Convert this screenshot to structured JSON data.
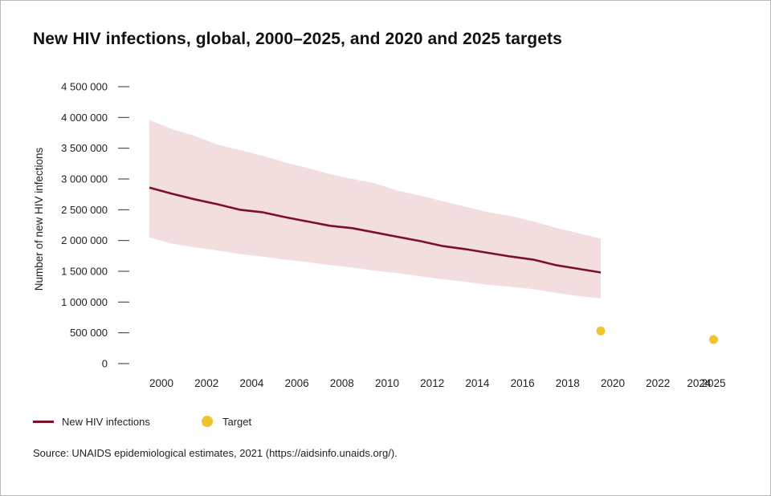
{
  "title": "New HIV infections, global, 2000–2025, and 2020 and 2025 targets",
  "source": "Source: UNAIDS epidemiological estimates, 2021 (https://aidsinfo.unaids.org/).",
  "colors": {
    "line": "#7d1026",
    "band": "#f2dede",
    "target": "#f0c430"
  },
  "legend": {
    "items": [
      {
        "label": "New HIV infections",
        "marker": "line"
      },
      {
        "label": "Target",
        "marker": "dot"
      }
    ]
  },
  "chart_data": {
    "type": "line",
    "title": "New HIV infections, global, 2000–2025, and 2020 and 2025 targets",
    "xlabel": "",
    "ylabel": "Number of new HIV infections",
    "xlim": [
      1999.5,
      2025.5
    ],
    "ylim": [
      0,
      4500000
    ],
    "y_ticks": [
      0,
      500000,
      1000000,
      1500000,
      2000000,
      2500000,
      3000000,
      3500000,
      4000000,
      4500000
    ],
    "y_tick_labels": [
      "0",
      "500 000",
      "1 000 000",
      "1 500 000",
      "2 000 000",
      "2 500 000",
      "3 000 000",
      "3 500 000",
      "4 000 000",
      "4 500 000"
    ],
    "x_ticks": [
      2000,
      2002,
      2004,
      2006,
      2008,
      2010,
      2012,
      2014,
      2016,
      2018,
      2020,
      2022,
      2024,
      2025
    ],
    "x_tick_labels": [
      "2000",
      "2002",
      "2004",
      "2006",
      "2008",
      "2010",
      "2012",
      "2014",
      "2016",
      "2018",
      "2020",
      "2022",
      "2024",
      "2025"
    ],
    "grid": false,
    "legend_position": "bottom-left",
    "x": [
      2000,
      2001,
      2002,
      2003,
      2004,
      2005,
      2006,
      2007,
      2008,
      2009,
      2010,
      2011,
      2012,
      2013,
      2014,
      2015,
      2016,
      2017,
      2018,
      2019,
      2020
    ],
    "series": [
      {
        "name": "New HIV infections",
        "values": [
          2860000,
          2760000,
          2670000,
          2590000,
          2500000,
          2460000,
          2380000,
          2310000,
          2240000,
          2200000,
          2130000,
          2060000,
          1990000,
          1910000,
          1860000,
          1800000,
          1740000,
          1690000,
          1600000,
          1540000,
          1480000
        ],
        "lower": [
          2050000,
          1950000,
          1890000,
          1840000,
          1780000,
          1740000,
          1690000,
          1650000,
          1600000,
          1560000,
          1510000,
          1470000,
          1420000,
          1370000,
          1330000,
          1280000,
          1250000,
          1210000,
          1150000,
          1100000,
          1060000
        ],
        "upper": [
          3960000,
          3810000,
          3700000,
          3560000,
          3470000,
          3380000,
          3270000,
          3180000,
          3080000,
          3000000,
          2930000,
          2810000,
          2730000,
          2640000,
          2550000,
          2460000,
          2400000,
          2310000,
          2210000,
          2120000,
          2030000
        ]
      },
      {
        "name": "Target",
        "type": "scatter",
        "x": [
          2020,
          2025
        ],
        "values": [
          530000,
          390000
        ]
      }
    ]
  }
}
